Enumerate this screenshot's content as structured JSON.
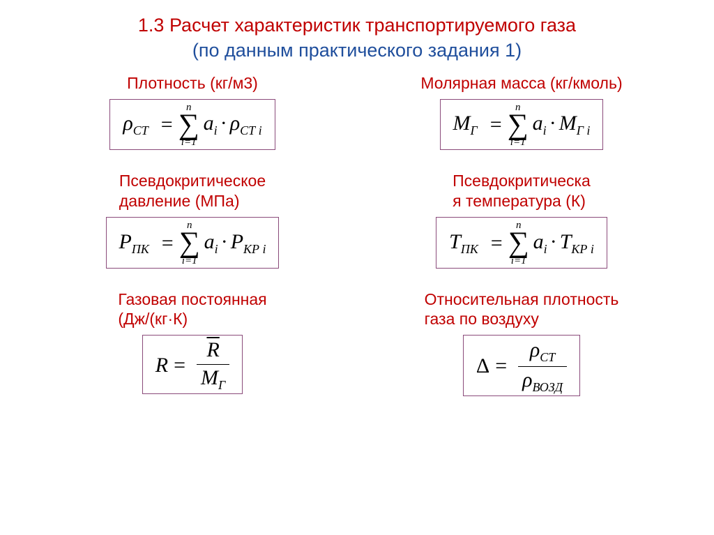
{
  "title": {
    "line1": "1.3 Расчет характеристик транспортируемого газа",
    "line2": "(по данным  практического задания 1)",
    "color_red": "#c00000",
    "color_blue": "#1f4e9c",
    "fontsize": 27
  },
  "labels": {
    "density": "Плотность (кг/м3)",
    "molar": "Молярная масса (кг/кмоль)",
    "pc_pressure_l1": "Псевдокритическое",
    "pc_pressure_l2": "давление (МПа)",
    "pc_temp_l1": "Псевдокритическа",
    "pc_temp_l2": "я температура  (К)",
    "gasconst_l1": "Газовая постоянная",
    "gasconst_l2": "(Дж/(кг·К)",
    "reldens_l1": "Относительная плотность",
    "reldens_l2": "газа по воздуху",
    "color": "#c00000",
    "fontsize": 23
  },
  "formulas": {
    "sum_upper": "n",
    "sum_lower": "i=1",
    "sigma": "∑",
    "dot": "·",
    "density": {
      "lhs_sym": "ρ",
      "lhs_sub": "СТ",
      "rhs1": "a",
      "rhs1_sub": "i",
      "rhs2": "ρ",
      "rhs2_sub": "СТ i"
    },
    "molar": {
      "lhs_sym": "M",
      "lhs_sub": "Г",
      "rhs1": "a",
      "rhs1_sub": "i",
      "rhs2": "M",
      "rhs2_sub": "Г i"
    },
    "pressure": {
      "lhs_sym": "P",
      "lhs_sub": "ПК",
      "rhs1": "a",
      "rhs1_sub": "i",
      "rhs2": "P",
      "rhs2_sub": "КР i"
    },
    "temp": {
      "lhs_sym": "T",
      "lhs_sub": "ПК",
      "rhs1": "a",
      "rhs1_sub": "i",
      "rhs2": "T",
      "rhs2_sub": "КР i"
    },
    "gasconst": {
      "lhs": "R",
      "num": "R",
      "den_sym": "M",
      "den_sub": "Г"
    },
    "reldens": {
      "lhs": "Δ",
      "num_sym": "ρ",
      "num_sub": "СТ",
      "den_sym": "ρ",
      "den_sub": "ВОЗД"
    }
  },
  "style": {
    "box_border": "#8a4a7a",
    "background": "#ffffff",
    "formula_font": "Times New Roman",
    "formula_fontsize": 30
  }
}
